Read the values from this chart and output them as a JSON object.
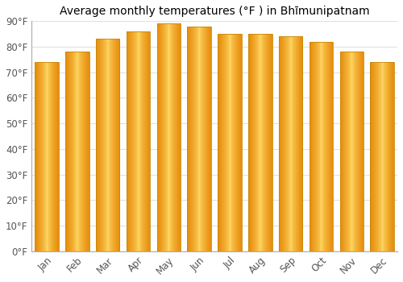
{
  "title": "Average monthly temperatures (°F ) in Bhīmunipatnam",
  "months": [
    "Jan",
    "Feb",
    "Mar",
    "Apr",
    "May",
    "Jun",
    "Jul",
    "Aug",
    "Sep",
    "Oct",
    "Nov",
    "Dec"
  ],
  "values": [
    74,
    78,
    83,
    86,
    89,
    88,
    85,
    85,
    84,
    82,
    78,
    74
  ],
  "bar_color_center": "#FFD580",
  "bar_color_edge": "#F0A020",
  "bar_edge_color": "#C8880A",
  "background_color": "#ffffff",
  "grid_color": "#e0e0e0",
  "ylim": [
    0,
    90
  ],
  "yticks": [
    0,
    10,
    20,
    30,
    40,
    50,
    60,
    70,
    80,
    90
  ],
  "ytick_labels": [
    "0°F",
    "10°F",
    "20°F",
    "30°F",
    "40°F",
    "50°F",
    "60°F",
    "70°F",
    "80°F",
    "90°F"
  ],
  "title_fontsize": 10,
  "tick_fontsize": 8.5,
  "bar_width": 0.78
}
